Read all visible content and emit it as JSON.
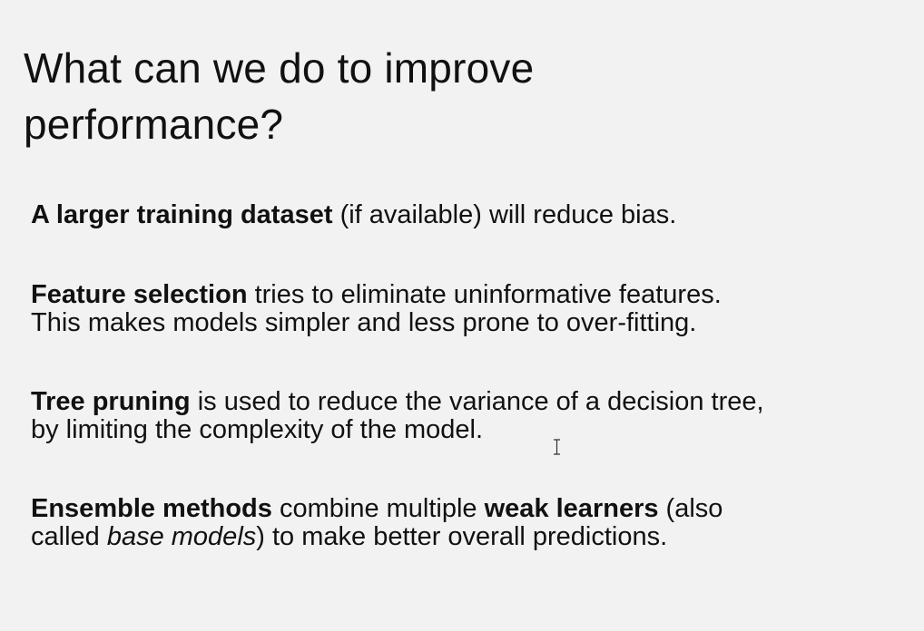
{
  "slide": {
    "title_line1": "What can we do to improve",
    "title_line2": "performance?",
    "points": [
      {
        "lead": "A larger training dataset",
        "rest": " (if available) will reduce bias."
      },
      {
        "lead": "Feature selection",
        "rest_line1": " tries to eliminate uninformative features.",
        "rest_line2": "This makes models simpler and less prone to over-fitting."
      },
      {
        "lead": "Tree pruning",
        "rest_line1": " is used to reduce the variance of a decision tree,",
        "rest_line2": "by limiting the complexity of the model."
      },
      {
        "lead": "Ensemble methods",
        "mid": " combine multiple ",
        "bold2": "weak learners",
        "rest_line1": " (also",
        "line2_start": "called ",
        "italic": "base models",
        "line2_end": ") to make better overall predictions."
      }
    ]
  },
  "icons": {
    "cursor": "text-cursor-icon"
  }
}
